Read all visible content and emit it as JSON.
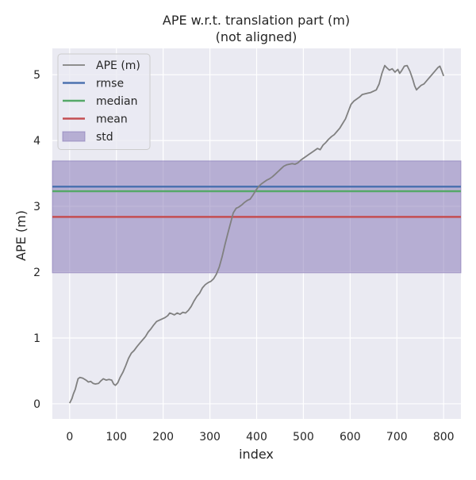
{
  "chart_data": {
    "type": "line",
    "title": "APE w.r.t. translation part (m)",
    "subtitle": "(not aligned)",
    "xlabel": "index",
    "ylabel": "APE (m)",
    "xlim": [
      -37,
      837
    ],
    "ylim": [
      -0.23,
      5.4
    ],
    "x_ticks": [
      0,
      100,
      200,
      300,
      400,
      500,
      600,
      700,
      800
    ],
    "y_ticks": [
      0,
      1,
      2,
      3,
      4,
      5
    ],
    "grid": true,
    "legend_placement": "top-left",
    "legend": [
      {
        "label": "APE (m)",
        "kind": "line",
        "color": "#808080"
      },
      {
        "label": "rmse",
        "kind": "line",
        "color": "#4c72b0"
      },
      {
        "label": "median",
        "kind": "line",
        "color": "#55a868"
      },
      {
        "label": "mean",
        "kind": "line",
        "color": "#c44e52"
      },
      {
        "label": "std",
        "kind": "patch",
        "color": "#8172b3"
      }
    ],
    "stats": {
      "rmse": 3.3,
      "median": 3.23,
      "mean": 2.84,
      "std_band": [
        1.99,
        3.69
      ]
    },
    "series": [
      {
        "name": "APE (m)",
        "color": "#808080",
        "points": [
          [
            0,
            0.01
          ],
          [
            5,
            0.08
          ],
          [
            8,
            0.15
          ],
          [
            12,
            0.22
          ],
          [
            15,
            0.3
          ],
          [
            18,
            0.38
          ],
          [
            22,
            0.4
          ],
          [
            28,
            0.39
          ],
          [
            35,
            0.36
          ],
          [
            40,
            0.33
          ],
          [
            45,
            0.34
          ],
          [
            50,
            0.31
          ],
          [
            55,
            0.3
          ],
          [
            62,
            0.31
          ],
          [
            67,
            0.35
          ],
          [
            72,
            0.38
          ],
          [
            78,
            0.36
          ],
          [
            84,
            0.37
          ],
          [
            90,
            0.36
          ],
          [
            94,
            0.3
          ],
          [
            98,
            0.28
          ],
          [
            103,
            0.32
          ],
          [
            108,
            0.4
          ],
          [
            114,
            0.48
          ],
          [
            120,
            0.58
          ],
          [
            126,
            0.69
          ],
          [
            132,
            0.77
          ],
          [
            138,
            0.81
          ],
          [
            144,
            0.87
          ],
          [
            150,
            0.92
          ],
          [
            156,
            0.97
          ],
          [
            162,
            1.02
          ],
          [
            168,
            1.09
          ],
          [
            174,
            1.14
          ],
          [
            180,
            1.2
          ],
          [
            186,
            1.25
          ],
          [
            192,
            1.27
          ],
          [
            198,
            1.29
          ],
          [
            204,
            1.31
          ],
          [
            210,
            1.34
          ],
          [
            214,
            1.38
          ],
          [
            218,
            1.37
          ],
          [
            224,
            1.35
          ],
          [
            230,
            1.38
          ],
          [
            236,
            1.36
          ],
          [
            242,
            1.39
          ],
          [
            248,
            1.38
          ],
          [
            254,
            1.42
          ],
          [
            260,
            1.48
          ],
          [
            266,
            1.56
          ],
          [
            272,
            1.63
          ],
          [
            278,
            1.68
          ],
          [
            284,
            1.76
          ],
          [
            290,
            1.81
          ],
          [
            296,
            1.84
          ],
          [
            302,
            1.86
          ],
          [
            308,
            1.9
          ],
          [
            314,
            1.97
          ],
          [
            320,
            2.08
          ],
          [
            326,
            2.23
          ],
          [
            332,
            2.41
          ],
          [
            338,
            2.58
          ],
          [
            344,
            2.74
          ],
          [
            350,
            2.9
          ],
          [
            356,
            2.97
          ],
          [
            362,
            2.99
          ],
          [
            368,
            3.02
          ],
          [
            374,
            3.06
          ],
          [
            380,
            3.09
          ],
          [
            386,
            3.11
          ],
          [
            392,
            3.17
          ],
          [
            398,
            3.24
          ],
          [
            404,
            3.3
          ],
          [
            410,
            3.34
          ],
          [
            416,
            3.37
          ],
          [
            422,
            3.4
          ],
          [
            428,
            3.42
          ],
          [
            434,
            3.45
          ],
          [
            440,
            3.49
          ],
          [
            446,
            3.53
          ],
          [
            452,
            3.57
          ],
          [
            458,
            3.61
          ],
          [
            464,
            3.63
          ],
          [
            470,
            3.64
          ],
          [
            476,
            3.65
          ],
          [
            482,
            3.64
          ],
          [
            488,
            3.66
          ],
          [
            494,
            3.7
          ],
          [
            500,
            3.73
          ],
          [
            506,
            3.76
          ],
          [
            512,
            3.79
          ],
          [
            518,
            3.82
          ],
          [
            524,
            3.85
          ],
          [
            530,
            3.88
          ],
          [
            536,
            3.86
          ],
          [
            542,
            3.93
          ],
          [
            548,
            3.97
          ],
          [
            554,
            4.02
          ],
          [
            560,
            4.06
          ],
          [
            566,
            4.09
          ],
          [
            572,
            4.14
          ],
          [
            578,
            4.19
          ],
          [
            584,
            4.26
          ],
          [
            590,
            4.33
          ],
          [
            596,
            4.44
          ],
          [
            602,
            4.55
          ],
          [
            608,
            4.6
          ],
          [
            614,
            4.63
          ],
          [
            620,
            4.66
          ],
          [
            626,
            4.7
          ],
          [
            632,
            4.71
          ],
          [
            638,
            4.72
          ],
          [
            644,
            4.73
          ],
          [
            650,
            4.75
          ],
          [
            656,
            4.77
          ],
          [
            662,
            4.86
          ],
          [
            668,
            5.02
          ],
          [
            674,
            5.14
          ],
          [
            678,
            5.11
          ],
          [
            684,
            5.07
          ],
          [
            690,
            5.09
          ],
          [
            696,
            5.04
          ],
          [
            702,
            5.08
          ],
          [
            706,
            5.02
          ],
          [
            710,
            5.06
          ],
          [
            716,
            5.13
          ],
          [
            722,
            5.14
          ],
          [
            728,
            5.05
          ],
          [
            734,
            4.93
          ],
          [
            738,
            4.83
          ],
          [
            742,
            4.77
          ],
          [
            746,
            4.8
          ],
          [
            752,
            4.84
          ],
          [
            758,
            4.86
          ],
          [
            764,
            4.91
          ],
          [
            770,
            4.96
          ],
          [
            776,
            5.01
          ],
          [
            782,
            5.06
          ],
          [
            788,
            5.11
          ],
          [
            792,
            5.13
          ],
          [
            796,
            5.06
          ],
          [
            800,
            4.98
          ]
        ]
      }
    ]
  }
}
